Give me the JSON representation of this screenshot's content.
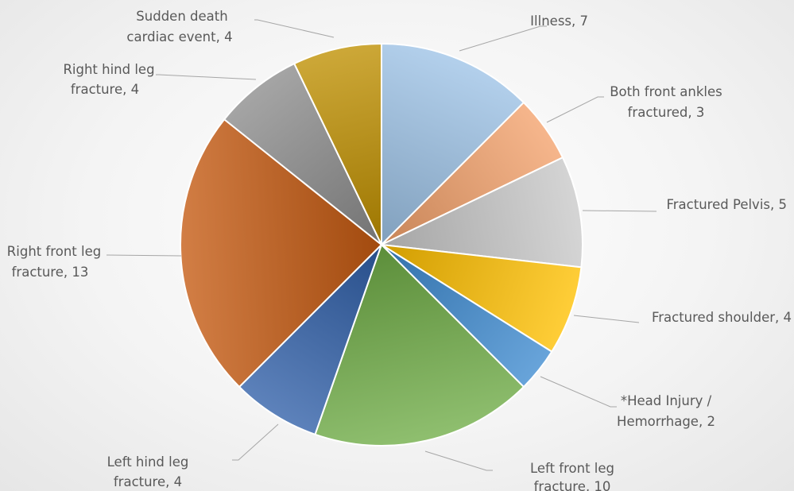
{
  "chart_data": {
    "type": "pie",
    "slices": [
      {
        "label": "Illness",
        "value": 7,
        "color": "#9dc3e6"
      },
      {
        "label": "Both front ankles fractured",
        "value": 3,
        "color": "#f4a26b"
      },
      {
        "label": "Fractured Pelvis",
        "value": 5,
        "color": "#c9c9c9"
      },
      {
        "label": "Fractured shoulder",
        "value": 4,
        "color": "#ffc000"
      },
      {
        "label": "*Head Injury / Hemorrhage",
        "value": 2,
        "color": "#3d8ad0"
      },
      {
        "label": "Left front leg fracture",
        "value": 10,
        "color": "#70ad47"
      },
      {
        "label": "Left hind leg fracture",
        "value": 4,
        "color": "#2f5fa8"
      },
      {
        "label": "Right front leg fracture",
        "value": 13,
        "color": "#c55a11"
      },
      {
        "label": "Right hind leg fracture",
        "value": 4,
        "color": "#8c8c8c"
      },
      {
        "label": "Sudden death cardiac event",
        "value": 4,
        "color": "#bf9000"
      }
    ],
    "data_labels": [
      "Illness, 7",
      "Both front ankles fractured, 3",
      "Fractured Pelvis, 5",
      "Fractured shoulder, 4",
      "*Head Injury / Hemorrhage, 2",
      "Left front leg fracture, 10",
      "Left hind leg fracture, 4",
      "Right front leg fracture, 13",
      "Right hind leg fracture, 4",
      "Sudden death cardiac event, 4"
    ]
  }
}
